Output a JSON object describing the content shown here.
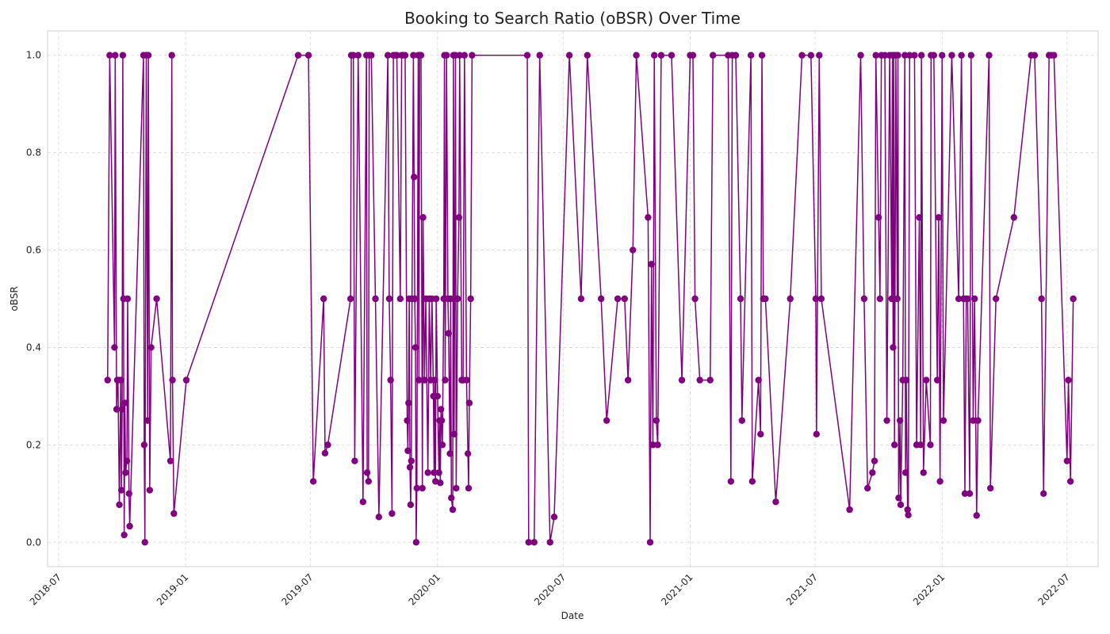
{
  "chart_data": {
    "type": "line",
    "title": "Booking to Search Ratio (oBSR) Over Time",
    "xlabel": "Date",
    "ylabel": "oBSR",
    "xlim": [
      "2018-06-15",
      "2022-08-15"
    ],
    "ylim": [
      -0.05,
      1.05
    ],
    "x_ticks": [
      "2018-07",
      "2019-01",
      "2019-07",
      "2020-01",
      "2020-07",
      "2021-01",
      "2021-07",
      "2022-01",
      "2022-07"
    ],
    "y_ticks": [
      "0.0",
      "0.2",
      "0.4",
      "0.6",
      "0.8",
      "1.0"
    ],
    "grid": true,
    "line_color": "#800080",
    "marker": "circle",
    "series": [
      {
        "points": [
          [
            "2018-09-10",
            0.333
          ],
          [
            "2018-09-13",
            1.0
          ],
          [
            "2018-09-20",
            0.4
          ],
          [
            "2018-09-21",
            1.0
          ],
          [
            "2018-09-23",
            0.273
          ],
          [
            "2018-09-24",
            0.333
          ],
          [
            "2018-09-25",
            0.333
          ],
          [
            "2018-09-27",
            0.077
          ],
          [
            "2018-09-29",
            0.333
          ],
          [
            "2018-09-30",
            0.107
          ],
          [
            "2018-10-01",
            0.273
          ],
          [
            "2018-10-02",
            1.0
          ],
          [
            "2018-10-03",
            0.5
          ],
          [
            "2018-10-04",
            0.015
          ],
          [
            "2018-10-05",
            0.286
          ],
          [
            "2018-10-06",
            0.143
          ],
          [
            "2018-10-08",
            0.167
          ],
          [
            "2018-10-09",
            0.5
          ],
          [
            "2018-10-11",
            0.1
          ],
          [
            "2018-10-12",
            0.033
          ],
          [
            "2018-11-01",
            1.0
          ],
          [
            "2018-11-02",
            0.2
          ],
          [
            "2018-11-03",
            0.0
          ],
          [
            "2018-11-05",
            1.0
          ],
          [
            "2018-11-07",
            0.25
          ],
          [
            "2018-11-08",
            1.0
          ],
          [
            "2018-11-10",
            0.107
          ],
          [
            "2018-11-12",
            0.4
          ],
          [
            "2018-11-20",
            0.5
          ],
          [
            "2018-12-10",
            0.167
          ],
          [
            "2018-12-12",
            1.0
          ],
          [
            "2018-12-13",
            0.333
          ],
          [
            "2018-12-15",
            0.059
          ],
          [
            "2019-01-02",
            0.333
          ],
          [
            "2019-06-13",
            1.0
          ],
          [
            "2019-06-28",
            1.0
          ],
          [
            "2019-07-05",
            0.125
          ],
          [
            "2019-07-20",
            0.5
          ],
          [
            "2019-07-22",
            0.183
          ],
          [
            "2019-07-26",
            0.2
          ],
          [
            "2019-08-28",
            0.5
          ],
          [
            "2019-08-29",
            1.0
          ],
          [
            "2019-09-01",
            1.0
          ],
          [
            "2019-09-03",
            0.167
          ],
          [
            "2019-09-08",
            1.0
          ],
          [
            "2019-09-15",
            0.083
          ],
          [
            "2019-09-20",
            1.0
          ],
          [
            "2019-09-21",
            0.143
          ],
          [
            "2019-09-23",
            0.125
          ],
          [
            "2019-09-24",
            1.0
          ],
          [
            "2019-09-27",
            1.0
          ],
          [
            "2019-10-03",
            0.5
          ],
          [
            "2019-10-08",
            0.052
          ],
          [
            "2019-10-21",
            1.0
          ],
          [
            "2019-10-23",
            0.5
          ],
          [
            "2019-10-25",
            0.333
          ],
          [
            "2019-10-27",
            0.059
          ],
          [
            "2019-10-29",
            1.0
          ],
          [
            "2019-11-01",
            1.0
          ],
          [
            "2019-11-03",
            1.0
          ],
          [
            "2019-11-08",
            0.5
          ],
          [
            "2019-11-10",
            1.0
          ],
          [
            "2019-11-12",
            1.0
          ],
          [
            "2019-11-15",
            1.0
          ],
          [
            "2019-11-18",
            0.25
          ],
          [
            "2019-11-19",
            0.188
          ],
          [
            "2019-11-20",
            0.286
          ],
          [
            "2019-11-21",
            0.5
          ],
          [
            "2019-11-22",
            0.154
          ],
          [
            "2019-11-23",
            0.077
          ],
          [
            "2019-11-24",
            0.167
          ],
          [
            "2019-11-25",
            0.5
          ],
          [
            "2019-11-27",
            1.0
          ],
          [
            "2019-11-28",
            0.75
          ],
          [
            "2019-11-29",
            0.5
          ],
          [
            "2019-11-30",
            0.4
          ],
          [
            "2019-12-01",
            0.0
          ],
          [
            "2019-12-02",
            0.111
          ],
          [
            "2019-12-04",
            1.0
          ],
          [
            "2019-12-05",
            0.333
          ],
          [
            "2019-12-06",
            1.0
          ],
          [
            "2019-12-08",
            1.0
          ],
          [
            "2019-12-10",
            0.111
          ],
          [
            "2019-12-11",
            0.667
          ],
          [
            "2019-12-13",
            0.333
          ],
          [
            "2019-12-15",
            0.5
          ],
          [
            "2019-12-18",
            0.143
          ],
          [
            "2019-12-20",
            0.5
          ],
          [
            "2019-12-22",
            0.333
          ],
          [
            "2019-12-24",
            0.5
          ],
          [
            "2019-12-26",
            0.3
          ],
          [
            "2019-12-27",
            0.143
          ],
          [
            "2019-12-28",
            0.333
          ],
          [
            "2019-12-29",
            0.125
          ],
          [
            "2019-12-30",
            0.5
          ],
          [
            "2020-01-01",
            0.3
          ],
          [
            "2020-01-03",
            0.143
          ],
          [
            "2020-01-04",
            0.25
          ],
          [
            "2020-01-05",
            0.122
          ],
          [
            "2020-01-06",
            0.273
          ],
          [
            "2020-01-07",
            0.25
          ],
          [
            "2020-01-08",
            0.2
          ],
          [
            "2020-01-10",
            0.5
          ],
          [
            "2020-01-11",
            1.0
          ],
          [
            "2020-01-12",
            0.333
          ],
          [
            "2020-01-14",
            1.0
          ],
          [
            "2020-01-16",
            0.5
          ],
          [
            "2020-01-17",
            0.429
          ],
          [
            "2020-01-19",
            0.182
          ],
          [
            "2020-01-20",
            0.5
          ],
          [
            "2020-01-21",
            0.091
          ],
          [
            "2020-01-23",
            0.067
          ],
          [
            "2020-01-24",
            1.0
          ],
          [
            "2020-01-25",
            0.222
          ],
          [
            "2020-01-27",
            1.0
          ],
          [
            "2020-01-28",
            0.111
          ],
          [
            "2020-01-30",
            0.5
          ],
          [
            "2020-02-01",
            0.667
          ],
          [
            "2020-02-02",
            1.0
          ],
          [
            "2020-02-05",
            0.333
          ],
          [
            "2020-02-07",
            0.333
          ],
          [
            "2020-02-09",
            1.0
          ],
          [
            "2020-02-12",
            0.333
          ],
          [
            "2020-02-14",
            0.182
          ],
          [
            "2020-02-15",
            0.111
          ],
          [
            "2020-02-16",
            0.286
          ],
          [
            "2020-02-18",
            0.5
          ],
          [
            "2020-02-20",
            1.0
          ],
          [
            "2020-05-10",
            1.0
          ],
          [
            "2020-05-12",
            0.0
          ],
          [
            "2020-05-20",
            0.0
          ],
          [
            "2020-05-28",
            1.0
          ],
          [
            "2020-06-12",
            0.0
          ],
          [
            "2020-06-18",
            0.052
          ],
          [
            "2020-07-10",
            1.0
          ],
          [
            "2020-07-27",
            0.5
          ],
          [
            "2020-08-05",
            1.0
          ],
          [
            "2020-08-25",
            0.5
          ],
          [
            "2020-09-02",
            0.25
          ],
          [
            "2020-09-18",
            0.5
          ],
          [
            "2020-09-28",
            0.5
          ],
          [
            "2020-10-03",
            0.333
          ],
          [
            "2020-10-10",
            0.6
          ],
          [
            "2020-10-15",
            1.0
          ],
          [
            "2020-11-01",
            0.667
          ],
          [
            "2020-11-04",
            0.0
          ],
          [
            "2020-11-06",
            0.571
          ],
          [
            "2020-11-08",
            0.2
          ],
          [
            "2020-11-10",
            1.0
          ],
          [
            "2020-11-13",
            0.25
          ],
          [
            "2020-11-15",
            0.2
          ],
          [
            "2020-11-20",
            1.0
          ],
          [
            "2020-12-05",
            1.0
          ],
          [
            "2020-12-20",
            0.333
          ],
          [
            "2021-01-01",
            1.0
          ],
          [
            "2021-01-05",
            1.0
          ],
          [
            "2021-01-08",
            0.5
          ],
          [
            "2021-01-15",
            0.333
          ],
          [
            "2021-01-30",
            0.333
          ],
          [
            "2021-02-03",
            1.0
          ],
          [
            "2021-02-25",
            1.0
          ],
          [
            "2021-03-01",
            0.125
          ],
          [
            "2021-03-03",
            1.0
          ],
          [
            "2021-03-08",
            1.0
          ],
          [
            "2021-03-15",
            0.5
          ],
          [
            "2021-03-17",
            0.25
          ],
          [
            "2021-03-30",
            1.0
          ],
          [
            "2021-04-01",
            0.125
          ],
          [
            "2021-04-10",
            0.333
          ],
          [
            "2021-04-13",
            0.222
          ],
          [
            "2021-04-15",
            1.0
          ],
          [
            "2021-04-17",
            0.5
          ],
          [
            "2021-04-20",
            0.5
          ],
          [
            "2021-05-05",
            0.083
          ],
          [
            "2021-05-26",
            0.5
          ],
          [
            "2021-06-12",
            1.0
          ],
          [
            "2021-06-25",
            1.0
          ],
          [
            "2021-07-02",
            0.5
          ],
          [
            "2021-07-03",
            0.222
          ],
          [
            "2021-07-07",
            1.0
          ],
          [
            "2021-07-10",
            0.5
          ],
          [
            "2021-08-20",
            0.067
          ],
          [
            "2021-09-05",
            1.0
          ],
          [
            "2021-09-10",
            0.5
          ],
          [
            "2021-09-15",
            0.111
          ],
          [
            "2021-09-22",
            0.143
          ],
          [
            "2021-09-25",
            0.167
          ],
          [
            "2021-09-27",
            1.0
          ],
          [
            "2021-10-01",
            0.667
          ],
          [
            "2021-10-03",
            0.5
          ],
          [
            "2021-10-05",
            1.0
          ],
          [
            "2021-10-10",
            1.0
          ],
          [
            "2021-10-13",
            0.25
          ],
          [
            "2021-10-17",
            1.0
          ],
          [
            "2021-10-20",
            0.5
          ],
          [
            "2021-10-21",
            1.0
          ],
          [
            "2021-10-22",
            0.4
          ],
          [
            "2021-10-23",
            1.0
          ],
          [
            "2021-10-24",
            0.2
          ],
          [
            "2021-10-26",
            1.0
          ],
          [
            "2021-10-28",
            0.5
          ],
          [
            "2021-10-29",
            1.0
          ],
          [
            "2021-10-30",
            0.091
          ],
          [
            "2021-11-01",
            0.25
          ],
          [
            "2021-11-02",
            0.077
          ],
          [
            "2021-11-05",
            0.333
          ],
          [
            "2021-11-08",
            1.0
          ],
          [
            "2021-11-09",
            0.143
          ],
          [
            "2021-11-10",
            0.333
          ],
          [
            "2021-11-12",
            0.067
          ],
          [
            "2021-11-13",
            0.056
          ],
          [
            "2021-11-15",
            1.0
          ],
          [
            "2021-11-22",
            1.0
          ],
          [
            "2021-11-25",
            0.2
          ],
          [
            "2021-11-29",
            0.667
          ],
          [
            "2021-12-01",
            0.2
          ],
          [
            "2021-12-02",
            1.0
          ],
          [
            "2021-12-05",
            0.143
          ],
          [
            "2021-12-09",
            0.333
          ],
          [
            "2021-12-15",
            0.2
          ],
          [
            "2021-12-16",
            1.0
          ],
          [
            "2021-12-20",
            1.0
          ],
          [
            "2021-12-25",
            0.333
          ],
          [
            "2021-12-27",
            0.667
          ],
          [
            "2021-12-29",
            0.125
          ],
          [
            "2022-01-01",
            1.0
          ],
          [
            "2022-01-03",
            0.25
          ],
          [
            "2022-01-15",
            1.0
          ],
          [
            "2022-01-25",
            0.5
          ],
          [
            "2022-01-29",
            1.0
          ],
          [
            "2022-02-01",
            0.5
          ],
          [
            "2022-02-03",
            0.1
          ],
          [
            "2022-02-05",
            0.5
          ],
          [
            "2022-02-07",
            0.5
          ],
          [
            "2022-02-10",
            0.1
          ],
          [
            "2022-02-12",
            1.0
          ],
          [
            "2022-02-15",
            0.25
          ],
          [
            "2022-02-17",
            0.5
          ],
          [
            "2022-02-20",
            0.055
          ],
          [
            "2022-02-22",
            0.25
          ],
          [
            "2022-03-10",
            1.0
          ],
          [
            "2022-03-12",
            0.111
          ],
          [
            "2022-03-20",
            0.5
          ],
          [
            "2022-04-15",
            0.667
          ],
          [
            "2022-05-10",
            1.0
          ],
          [
            "2022-05-15",
            1.0
          ],
          [
            "2022-05-25",
            0.5
          ],
          [
            "2022-05-28",
            0.1
          ],
          [
            "2022-06-05",
            1.0
          ],
          [
            "2022-06-08",
            1.0
          ],
          [
            "2022-06-12",
            1.0
          ],
          [
            "2022-07-01",
            0.167
          ],
          [
            "2022-07-03",
            0.333
          ],
          [
            "2022-07-06",
            0.125
          ],
          [
            "2022-07-10",
            0.5
          ]
        ]
      }
    ]
  }
}
